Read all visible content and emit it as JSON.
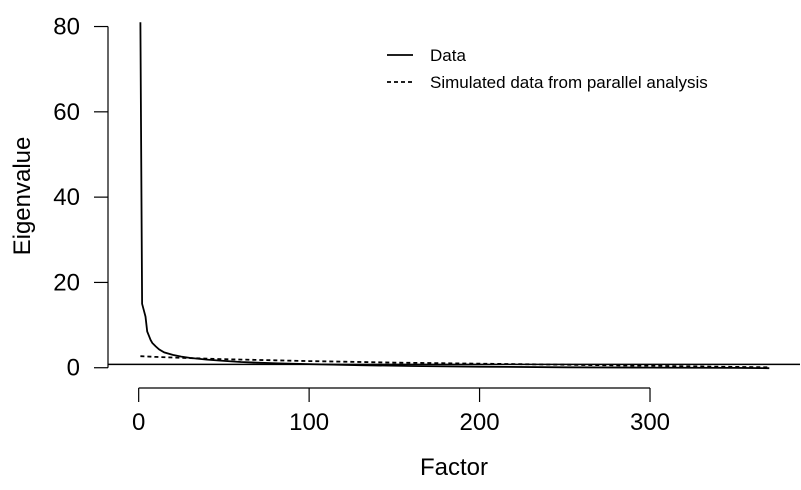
{
  "chart_data": {
    "type": "line",
    "title": "",
    "xlabel": "Factor",
    "ylabel": "Eigenvalue",
    "xlim": [
      -18,
      388
    ],
    "ylim": [
      -1,
      82
    ],
    "x_ticks": [
      0,
      100,
      200,
      300
    ],
    "y_ticks": [
      0,
      20,
      40,
      60,
      80
    ],
    "reference_line_y": 0.8,
    "legend_position": "top-right",
    "series": [
      {
        "name": "Data",
        "style": "solid",
        "color": "#000000",
        "x": [
          1,
          2,
          3,
          4,
          5,
          6,
          7,
          8,
          10,
          12,
          15,
          20,
          25,
          30,
          40,
          50,
          60,
          80,
          100,
          130,
          160,
          200,
          250,
          300,
          350,
          370
        ],
        "y": [
          81,
          15,
          13.5,
          12,
          8.5,
          7.5,
          6.5,
          5.8,
          5,
          4.3,
          3.6,
          3,
          2.6,
          2.3,
          1.9,
          1.6,
          1.35,
          1.05,
          0.85,
          0.6,
          0.4,
          0.25,
          0.1,
          0.02,
          -0.05,
          -0.1
        ]
      },
      {
        "name": "Simulated data from parallel analysis",
        "style": "dashed",
        "color": "#000000",
        "x": [
          1,
          10,
          20,
          30,
          50,
          80,
          100,
          150,
          200,
          250,
          300,
          350,
          370
        ],
        "y": [
          2.7,
          2.55,
          2.4,
          2.25,
          2.0,
          1.75,
          1.55,
          1.2,
          0.95,
          0.7,
          0.45,
          0.2,
          0.1
        ]
      }
    ]
  }
}
